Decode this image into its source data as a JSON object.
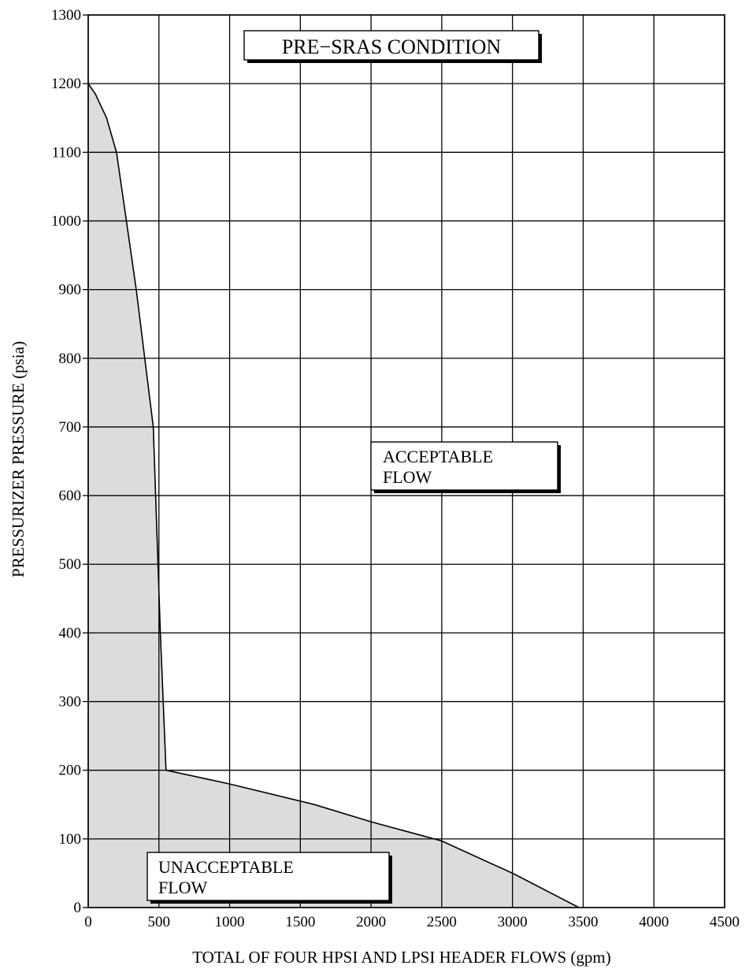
{
  "chart_data": {
    "type": "area",
    "title": "PRE−SRAS CONDITION",
    "xlabel": "TOTAL OF FOUR HPSI AND LPSI HEADER FLOWS (gpm)",
    "ylabel": "PRESSURIZER PRESSURE (psia)",
    "xlim": [
      0,
      4500
    ],
    "ylim": [
      0,
      1300
    ],
    "x_ticks": [
      "0",
      "500",
      "1000",
      "1500",
      "2000",
      "2500",
      "3000",
      "3500",
      "4000",
      "4500"
    ],
    "y_ticks": [
      "0",
      "100",
      "200",
      "300",
      "400",
      "500",
      "600",
      "700",
      "800",
      "900",
      "1000",
      "1100",
      "1200",
      "1300"
    ],
    "grid": true,
    "boundary_curve": {
      "x": [
        0,
        50,
        130,
        200,
        270,
        340,
        400,
        460,
        510,
        550,
        1000,
        1600,
        2000,
        2500,
        3000,
        3470
      ],
      "y": [
        1200,
        1185,
        1150,
        1100,
        1000,
        900,
        800,
        700,
        400,
        200,
        180,
        150,
        125,
        97,
        50,
        0
      ]
    },
    "regions": [
      {
        "label_lines": [
          "ACCEPTABLE",
          "FLOW"
        ],
        "shaded": false
      },
      {
        "label_lines": [
          "UNACCEPTABLE",
          "FLOW"
        ],
        "shaded": true
      }
    ]
  }
}
